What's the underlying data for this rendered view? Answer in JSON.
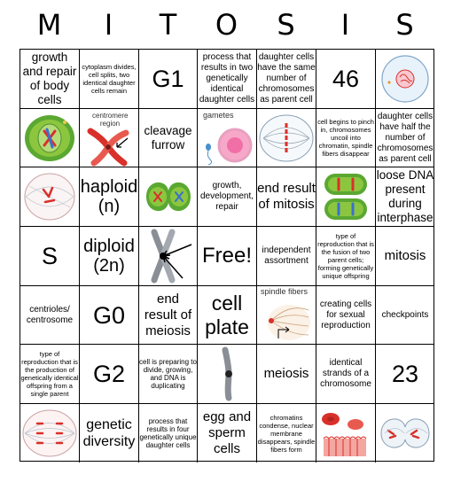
{
  "header": {
    "letters": [
      "M",
      "I",
      "T",
      "O",
      "S",
      "I",
      "S"
    ]
  },
  "cells": {
    "r0c0": "growth and repair of body cells",
    "r0c1": "cytoplasm divides, cell splits, two identical daughter cells remain",
    "r0c2": "G1",
    "r0c3": "process that results in two genetically identical daughter cells",
    "r0c4": "daughter cells have the same number of chromosomes as parent cell",
    "r0c5": "46",
    "r1c2": "cleavage furrow",
    "r1c5": "cell begins to pinch in, chromosomes uncoil into chromatin, spindle fibers disappear",
    "r1c6": "daughter cells have half the number of chromosomes as parent cell",
    "r2c1": "haploid (n)",
    "r2c3": "growth, development, repair",
    "r2c4": "end result of mitosis",
    "r2c6": "loose DNA present during interphase",
    "r3c0": "S",
    "r3c1": "diploid (2n)",
    "r3c3": "Free!",
    "r3c4": "independent assortment",
    "r3c5": "type of reproduction that is the fusion of two parent cells; forming genetically unique offspring",
    "r3c6": "mitosis",
    "r4c0": "centrioles/ centrosome",
    "r4c1": "G0",
    "r4c2": "end result of meiosis",
    "r4c3": "cell plate",
    "r4c5": "creating cells for sexual reproduction",
    "r4c6": "checkpoints",
    "r5c0": "type of reproduction that is the production of genetically identical offspring from a single parent",
    "r5c1": "G2",
    "r5c2": "cell is preparing to divide, growing, and DNA is duplicating",
    "r5c4": "meiosis",
    "r5c5": "identical strands of a chromosome",
    "r5c6": "23",
    "r6c1": "genetic diversity",
    "r6c2": "process that results in four genetically unique daughter cells",
    "r6c3": "egg and sperm cells",
    "r6c4": "chromatins condense, nuclear membrane disappears, spindle fibers form"
  },
  "image_labels": {
    "centromere": "centromere region",
    "gametes": "gametes",
    "spindle": "spindle fibers"
  },
  "colors": {
    "cell_green": "#8cc63f",
    "nucleus_green": "#5aa832",
    "chromosome_red": "#d9302a",
    "chromosome_blue": "#3a6fcf",
    "egg_pink": "#f06fa6",
    "spindle_gray": "#9aa6b2"
  },
  "icons": {
    "r0c6": "cell-interphase-icon",
    "r1c0": "plant-cell-icon",
    "r1c1": "chromosome-centromere-icon",
    "r1c3": "gametes-icon",
    "r1c4": "metaphase-cell-icon",
    "r2c0": "prophase-cell-icon",
    "r2c2": "dividing-cell-icon",
    "r2c5": "telophase-cells-icon",
    "r3c2": "chromosome-arrows-icon",
    "r4c4": "spindle-fibers-icon",
    "r5c3": "single-chromosome-icon",
    "r6c0": "anaphase-cell-icon",
    "r6c5": "blood-cells-icon",
    "r6c6": "cytokinesis-cell-icon"
  }
}
